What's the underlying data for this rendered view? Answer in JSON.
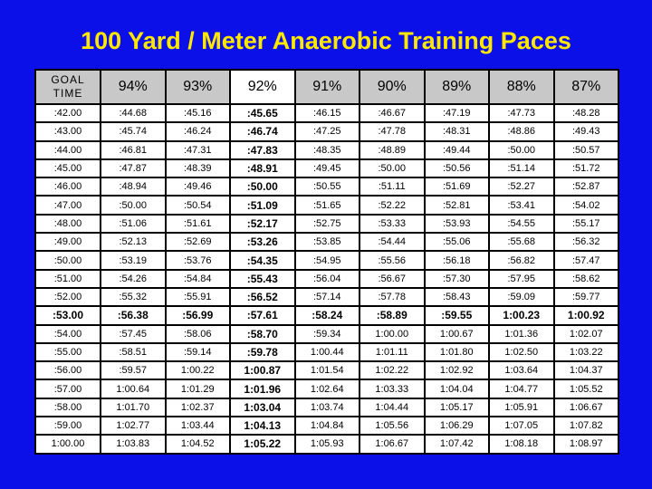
{
  "title": "100 Yard / Meter Anaerobic Training Paces",
  "colors": {
    "background": "#0b10e8",
    "title": "#ffe800",
    "header_bg": "#c8c8c8",
    "cell_bg": "#ffffff"
  },
  "table": {
    "goal_header_line1": "GOAL",
    "goal_header_line2": "TIME",
    "percent_headers": [
      "94%",
      "93%",
      "92%",
      "91%",
      "90%",
      "89%",
      "88%",
      "87%"
    ],
    "highlight_column_index": 2,
    "bold_row_index": 11,
    "rows": [
      [
        ":42.00",
        ":44.68",
        ":45.16",
        ":45.65",
        ":46.15",
        ":46.67",
        ":47.19",
        ":47.73",
        ":48.28"
      ],
      [
        ":43.00",
        ":45.74",
        ":46.24",
        ":46.74",
        ":47.25",
        ":47.78",
        ":48.31",
        ":48.86",
        ":49.43"
      ],
      [
        ":44.00",
        ":46.81",
        ":47.31",
        ":47.83",
        ":48.35",
        ":48.89",
        ":49.44",
        ":50.00",
        ":50.57"
      ],
      [
        ":45.00",
        ":47.87",
        ":48.39",
        ":48.91",
        ":49.45",
        ":50.00",
        ":50.56",
        ":51.14",
        ":51.72"
      ],
      [
        ":46.00",
        ":48.94",
        ":49.46",
        ":50.00",
        ":50.55",
        ":51.11",
        ":51.69",
        ":52.27",
        ":52.87"
      ],
      [
        ":47.00",
        ":50.00",
        ":50.54",
        ":51.09",
        ":51.65",
        ":52.22",
        ":52.81",
        ":53.41",
        ":54.02"
      ],
      [
        ":48.00",
        ":51.06",
        ":51.61",
        ":52.17",
        ":52.75",
        ":53.33",
        ":53.93",
        ":54.55",
        ":55.17"
      ],
      [
        ":49.00",
        ":52.13",
        ":52.69",
        ":53.26",
        ":53.85",
        ":54.44",
        ":55.06",
        ":55.68",
        ":56.32"
      ],
      [
        ":50.00",
        ":53.19",
        ":53.76",
        ":54.35",
        ":54.95",
        ":55.56",
        ":56.18",
        ":56.82",
        ":57.47"
      ],
      [
        ":51.00",
        ":54.26",
        ":54.84",
        ":55.43",
        ":56.04",
        ":56.67",
        ":57.30",
        ":57.95",
        ":58.62"
      ],
      [
        ":52.00",
        ":55.32",
        ":55.91",
        ":56.52",
        ":57.14",
        ":57.78",
        ":58.43",
        ":59.09",
        ":59.77"
      ],
      [
        ":53.00",
        ":56.38",
        ":56.99",
        ":57.61",
        ":58.24",
        ":58.89",
        ":59.55",
        "1:00.23",
        "1:00.92"
      ],
      [
        ":54.00",
        ":57.45",
        ":58.06",
        ":58.70",
        ":59.34",
        "1:00.00",
        "1:00.67",
        "1:01.36",
        "1:02.07"
      ],
      [
        ":55.00",
        ":58.51",
        ":59.14",
        ":59.78",
        "1:00.44",
        "1:01.11",
        "1:01.80",
        "1:02.50",
        "1:03.22"
      ],
      [
        ":56.00",
        ":59.57",
        "1:00.22",
        "1:00.87",
        "1:01.54",
        "1:02.22",
        "1:02.92",
        "1:03.64",
        "1:04.37"
      ],
      [
        ":57.00",
        "1:00.64",
        "1:01.29",
        "1:01.96",
        "1:02.64",
        "1:03.33",
        "1:04.04",
        "1:04.77",
        "1:05.52"
      ],
      [
        ":58.00",
        "1:01.70",
        "1:02.37",
        "1:03.04",
        "1:03.74",
        "1:04.44",
        "1:05.17",
        "1:05.91",
        "1:06.67"
      ],
      [
        ":59.00",
        "1:02.77",
        "1:03.44",
        "1:04.13",
        "1:04.84",
        "1:05.56",
        "1:06.29",
        "1:07.05",
        "1:07.82"
      ],
      [
        "1:00.00",
        "1:03.83",
        "1:04.52",
        "1:05.22",
        "1:05.93",
        "1:06.67",
        "1:07.42",
        "1:08.18",
        "1:08.97"
      ]
    ]
  }
}
